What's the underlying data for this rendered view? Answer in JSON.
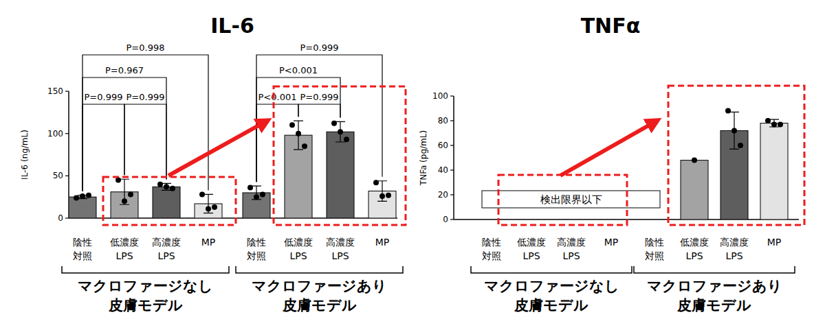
{
  "chart_data": [
    {
      "type": "bar",
      "title": "IL-6",
      "y_label": "IL-6 (ng/mL)",
      "categories": [
        "陰性\n対照",
        "低濃度\nLPS",
        "高濃度\nLPS",
        "MP",
        "陰性\n対照",
        "低濃度\nLPS",
        "高濃度\nLPS",
        "MP"
      ],
      "groups": [
        {
          "label": "マクロファージなし\n皮膚モデル",
          "from": 0,
          "to": 3
        },
        {
          "label": "マクロファージあり\n皮膚モデル",
          "from": 4,
          "to": 7
        }
      ],
      "values": [
        25,
        31,
        37,
        17,
        30,
        98,
        102,
        32
      ],
      "errors": [
        2,
        15,
        4,
        11,
        8,
        17,
        12,
        12
      ],
      "points": [
        [
          24,
          26,
          27
        ],
        [
          45,
          20,
          28
        ],
        [
          40,
          37,
          35
        ],
        [
          28,
          11,
          13
        ],
        [
          36,
          25,
          28
        ],
        [
          110,
          100,
          85
        ],
        [
          112,
          102,
          93
        ],
        [
          42,
          26,
          27
        ]
      ],
      "colors": [
        "#737373",
        "#a3a3a3",
        "#5e5e5e",
        "#e3e3e3",
        "#737373",
        "#a3a3a3",
        "#5e5e5e",
        "#e3e3e3"
      ],
      "ylim": [
        0,
        150
      ],
      "yticks": [
        0,
        50,
        100,
        150
      ],
      "comparisons": [
        {
          "text": "P=0.998",
          "from": 0,
          "to": 3
        },
        {
          "text": "P=0.967",
          "from": 0,
          "to": 2
        },
        {
          "text": "P=0.999",
          "from": 0,
          "to": 1
        },
        {
          "text": "P=0.999",
          "from": 1,
          "to": 2
        },
        {
          "text": "P=0.999",
          "from": 4,
          "to": 7
        },
        {
          "text": "P<0.001",
          "from": 4,
          "to": 6
        },
        {
          "text": "P<0.001",
          "from": 4,
          "to": 5
        },
        {
          "text": "P=0.999",
          "from": 5,
          "to": 6
        }
      ]
    },
    {
      "type": "bar",
      "title": "TNFα",
      "y_label": "TNFa (pg/mL)",
      "categories": [
        "陰性\n対照",
        "低濃度\nLPS",
        "高濃度\nLPS",
        "MP",
        "陰性\n対照",
        "低濃度\nLPS",
        "高濃度\nLPS",
        "MP"
      ],
      "groups": [
        {
          "label": "マクロファージなし\n皮膚モデル",
          "from": 0,
          "to": 3
        },
        {
          "label": "マクロファージあり\n皮膚モデル",
          "from": 4,
          "to": 7
        }
      ],
      "values": [
        null,
        null,
        null,
        null,
        null,
        48,
        72,
        78
      ],
      "errors": [
        null,
        null,
        null,
        null,
        null,
        null,
        15,
        3
      ],
      "points": [
        [],
        [],
        [],
        [],
        [],
        [
          48
        ],
        [
          88,
          72,
          60
        ],
        [
          80,
          77,
          77
        ]
      ],
      "colors": [
        "#737373",
        "#a3a3a3",
        "#5e5e5e",
        "#e3e3e3",
        "#737373",
        "#a3a3a3",
        "#5e5e5e",
        "#e3e3e3"
      ],
      "ylim": [
        0,
        100
      ],
      "yticks": [
        0,
        20,
        40,
        60,
        80,
        100
      ],
      "annotations": [
        {
          "text": "検出限界以下",
          "from": 0,
          "to": 4
        }
      ]
    }
  ]
}
